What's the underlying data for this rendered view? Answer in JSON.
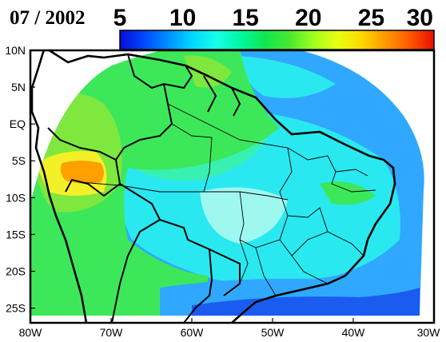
{
  "title": "07 / 2002",
  "colorbar": {
    "min": 5,
    "max": 30,
    "ticks": [
      "5",
      "10",
      "15",
      "20",
      "25",
      "30"
    ],
    "colors": [
      "#0a0ad8",
      "#0048ff",
      "#0090ff",
      "#00d8ff",
      "#18ffe8",
      "#00f8a0",
      "#10e850",
      "#48e830",
      "#a0ff20",
      "#e8ff10",
      "#ffd800",
      "#ff9800",
      "#ff5800",
      "#e81000"
    ]
  },
  "axes": {
    "x_ticks": [
      "80W",
      "70W",
      "60W",
      "50W",
      "40W",
      "30W"
    ],
    "y_ticks": [
      "10N",
      "5N",
      "EQ",
      "5S",
      "10S",
      "15S",
      "20S",
      "25S"
    ]
  },
  "field_colors": {
    "ocean_dark": "#1a5cf0",
    "ocean_blue": "#30a8ff",
    "cyan": "#2ae8f0",
    "light_cyan": "#9ef8f0",
    "aqua_green": "#38f0b0",
    "green": "#3ce85a",
    "lime_green": "#7ee83e",
    "yellow": "#f2f026",
    "orange": "#ffa000"
  }
}
